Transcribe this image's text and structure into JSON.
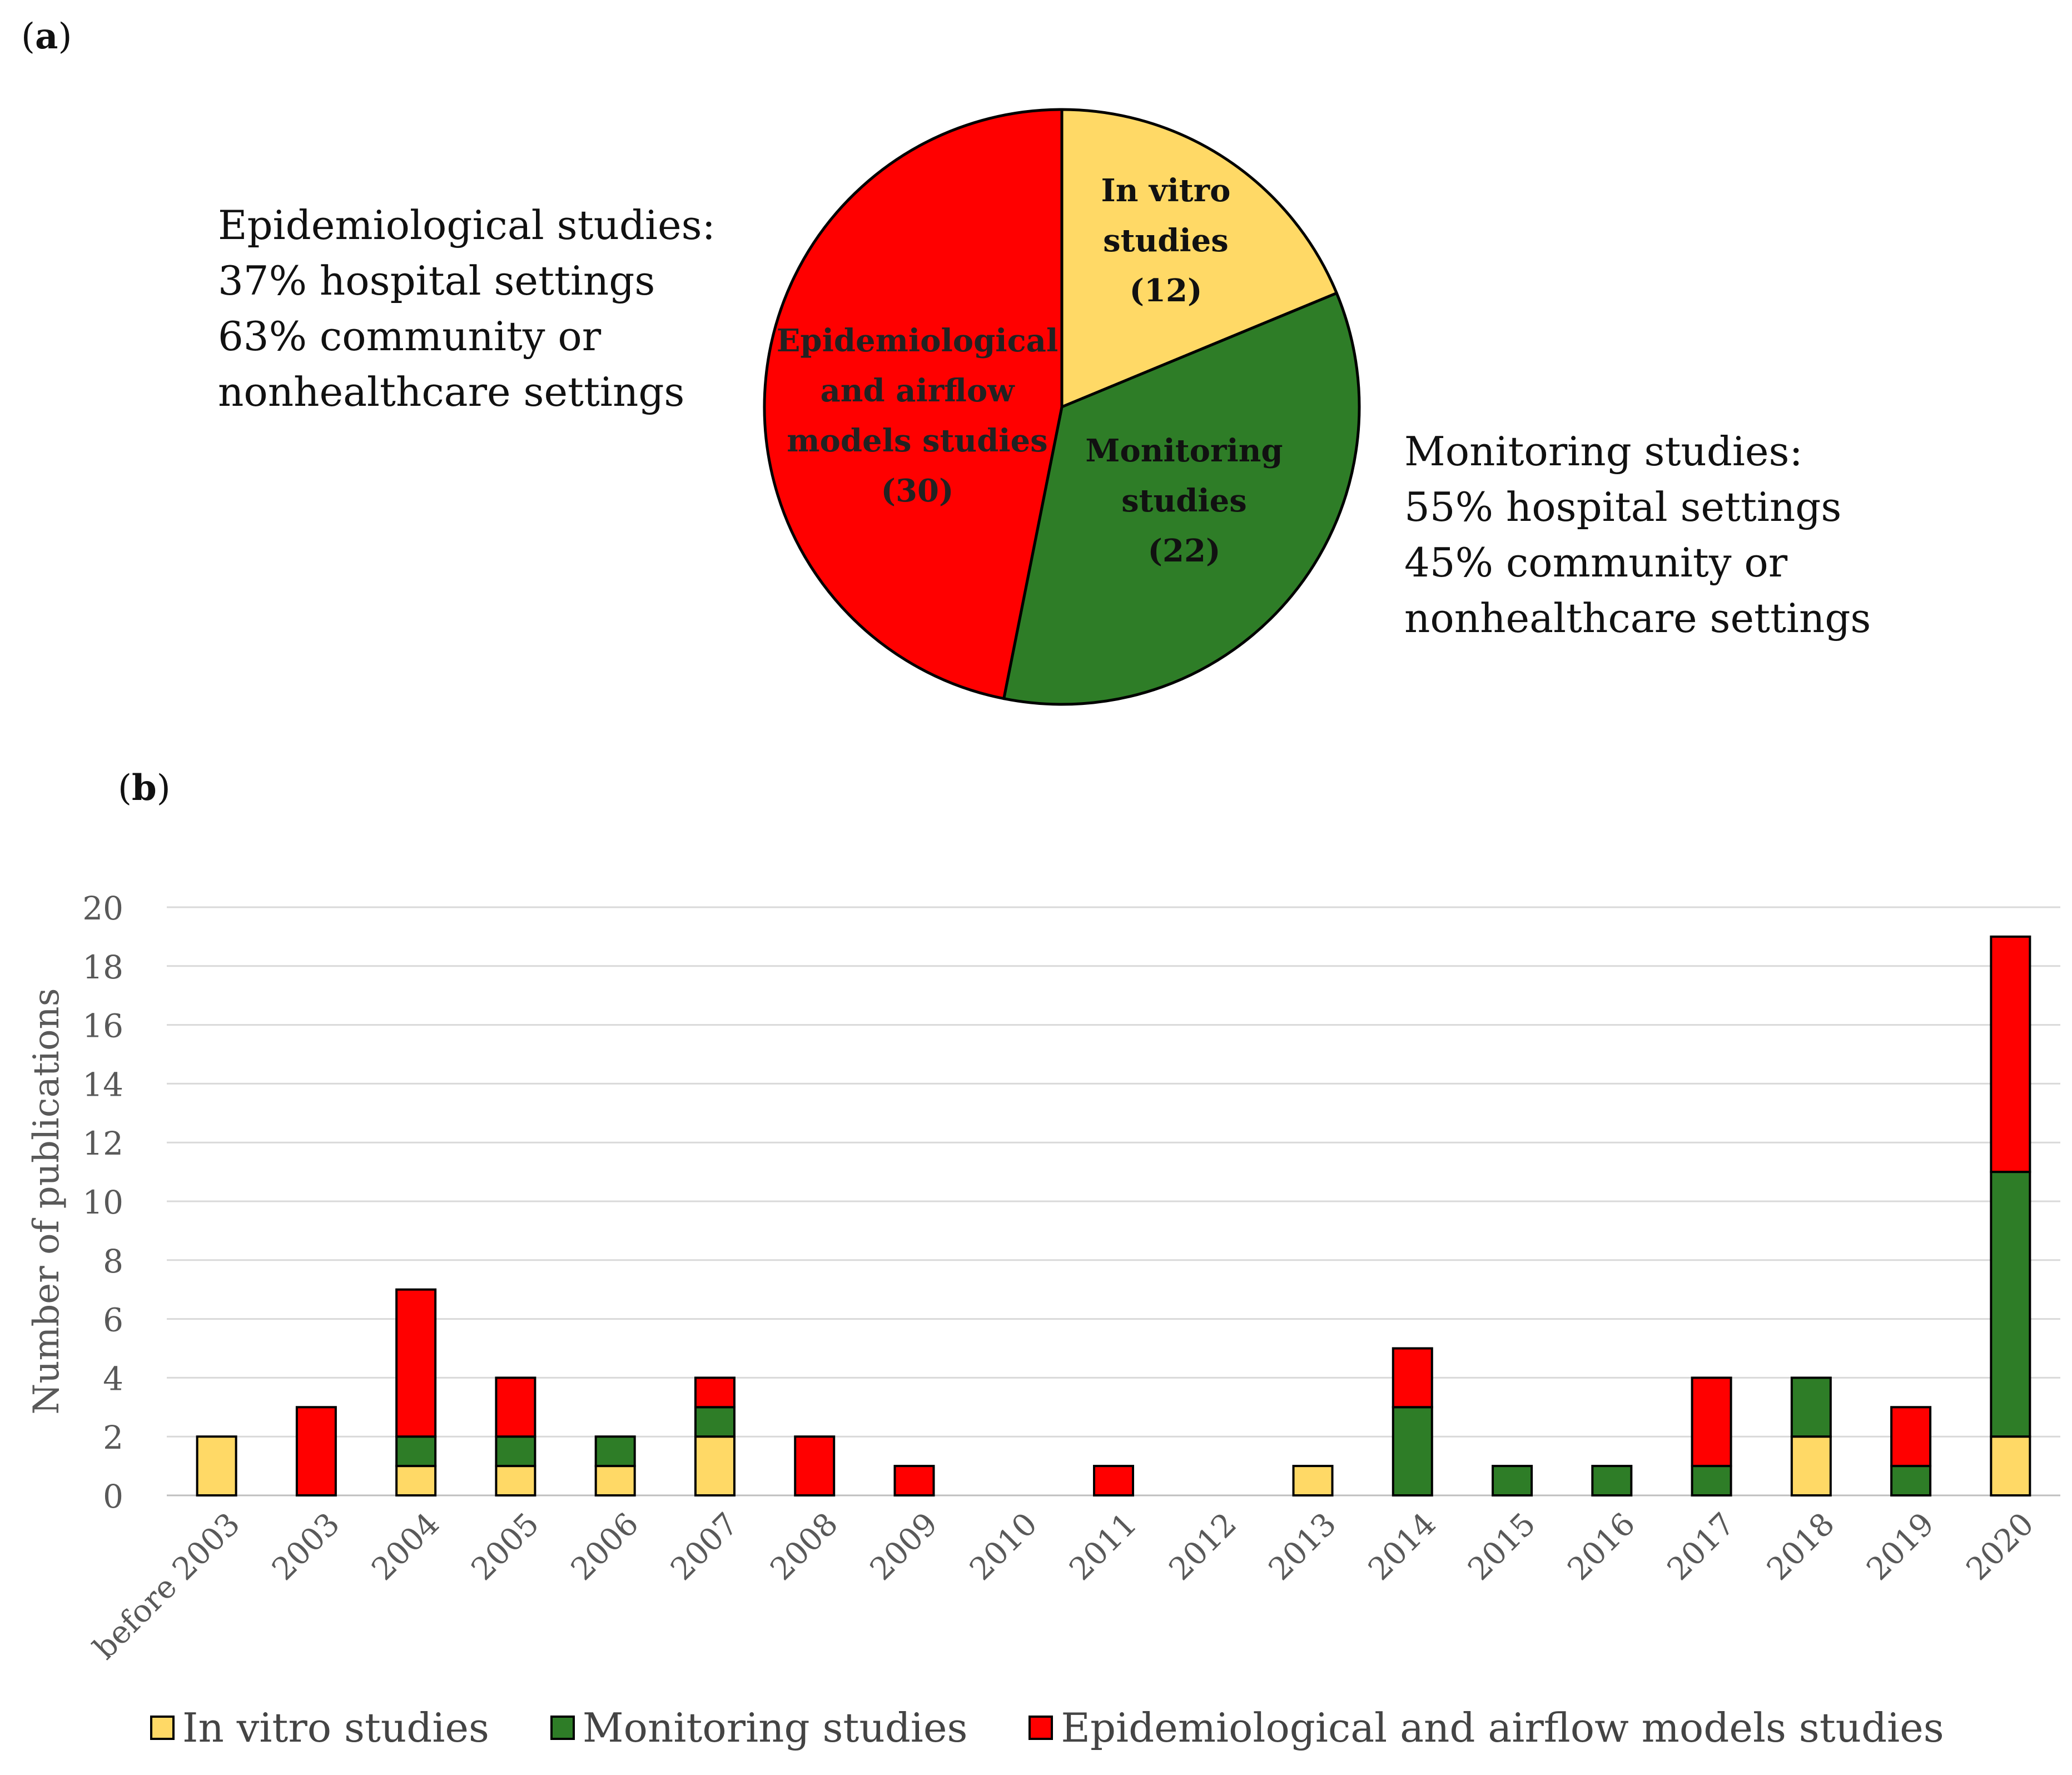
{
  "panel_a": {
    "label_open": "(",
    "label_letter": "a",
    "label_close": ")",
    "left_annotation": {
      "lines": [
        "Epidemiological studies:",
        "37% hospital settings",
        "63% community or",
        "nonhealthcare settings"
      ]
    },
    "right_annotation": {
      "lines": [
        "Monitoring studies:",
        "55% hospital settings",
        "45% community or",
        "nonhealthcare settings"
      ]
    }
  },
  "panel_b": {
    "label_open": "(",
    "label_letter": "b",
    "label_close": ")"
  },
  "colors": {
    "in_vitro": "#FFD966",
    "monitoring": "#2E7D27",
    "epidemiological": "#FF0000",
    "gridline": "#D9D9D9",
    "outline": "#000000"
  },
  "chart_data": [
    {
      "type": "pie",
      "slices": [
        {
          "name": "In vitro studies",
          "label_lines": [
            "In vitro",
            "studies",
            "(12)"
          ],
          "value": 12,
          "color": "#FFD966"
        },
        {
          "name": "Monitoring studies",
          "label_lines": [
            "Monitoring",
            "studies",
            "(22)"
          ],
          "value": 22,
          "color": "#2E7D27"
        },
        {
          "name": "Epidemiological and airflow models studies",
          "label_lines": [
            "Epidemiological",
            "and airflow",
            "models studies",
            "(30)"
          ],
          "value": 30,
          "color": "#FF0000"
        }
      ]
    },
    {
      "type": "bar",
      "stacked": true,
      "categories": [
        "before 2003",
        "2003",
        "2004",
        "2005",
        "2006",
        "2007",
        "2008",
        "2009",
        "2010",
        "2011",
        "2012",
        "2013",
        "2014",
        "2015",
        "2016",
        "2017",
        "2018",
        "2019",
        "2020"
      ],
      "series": [
        {
          "name": "In vitro studies",
          "color": "#FFD966",
          "values": [
            2,
            0,
            1,
            1,
            1,
            2,
            0,
            0,
            0,
            0,
            0,
            1,
            0,
            0,
            0,
            0,
            2,
            0,
            2
          ]
        },
        {
          "name": "Monitoring studies",
          "color": "#2E7D27",
          "values": [
            0,
            0,
            1,
            1,
            1,
            1,
            0,
            0,
            0,
            0,
            0,
            0,
            3,
            1,
            1,
            1,
            2,
            1,
            9
          ]
        },
        {
          "name": "Epidemiological and airflow models studies",
          "color": "#FF0000",
          "values": [
            0,
            3,
            5,
            2,
            0,
            1,
            2,
            1,
            0,
            1,
            0,
            0,
            2,
            0,
            0,
            3,
            0,
            2,
            8
          ]
        }
      ],
      "ylabel": "Number of publications",
      "xlabel": "",
      "ylim": [
        0,
        20
      ],
      "yticks": [
        "0",
        "2",
        "4",
        "6",
        "8",
        "10",
        "12",
        "14",
        "16",
        "18",
        "20"
      ],
      "grid": true,
      "legend_position": "bottom"
    }
  ]
}
